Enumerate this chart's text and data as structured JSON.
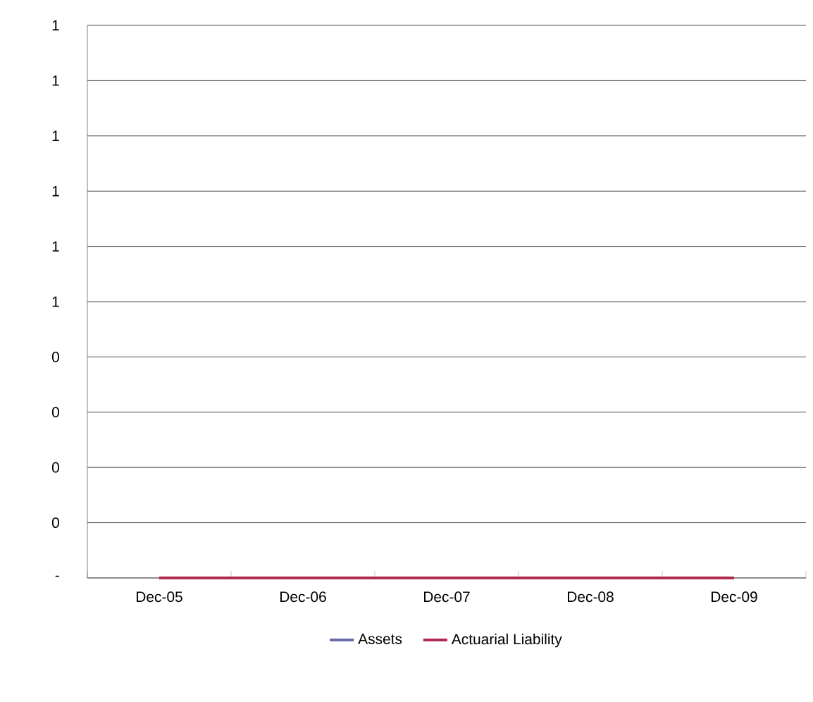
{
  "chart_data": {
    "type": "line",
    "categories": [
      "Dec-05",
      "Dec-06",
      "Dec-07",
      "Dec-08",
      "Dec-09"
    ],
    "series": [
      {
        "name": "Assets",
        "color": "#6a6aae",
        "values": [
          null,
          null,
          null,
          null,
          null
        ]
      },
      {
        "name": "Actuarial Liability",
        "color": "#b02a50",
        "values": [
          0,
          0,
          0,
          0,
          0
        ]
      }
    ],
    "ylim": [
      0,
      1
    ],
    "yticks": [
      {
        "value": 0,
        "label": "-"
      },
      {
        "value": 0.1,
        "label": "0"
      },
      {
        "value": 0.2,
        "label": "0"
      },
      {
        "value": 0.3,
        "label": "0"
      },
      {
        "value": 0.4,
        "label": "0"
      },
      {
        "value": 0.5,
        "label": "1"
      },
      {
        "value": 0.6,
        "label": "1"
      },
      {
        "value": 0.7,
        "label": "1"
      },
      {
        "value": 0.8,
        "label": "1"
      },
      {
        "value": 0.9,
        "label": "1"
      },
      {
        "value": 1.0,
        "label": "1"
      }
    ],
    "grid": "y",
    "legend": "bottom",
    "marker": "none",
    "line_style": "solid"
  }
}
